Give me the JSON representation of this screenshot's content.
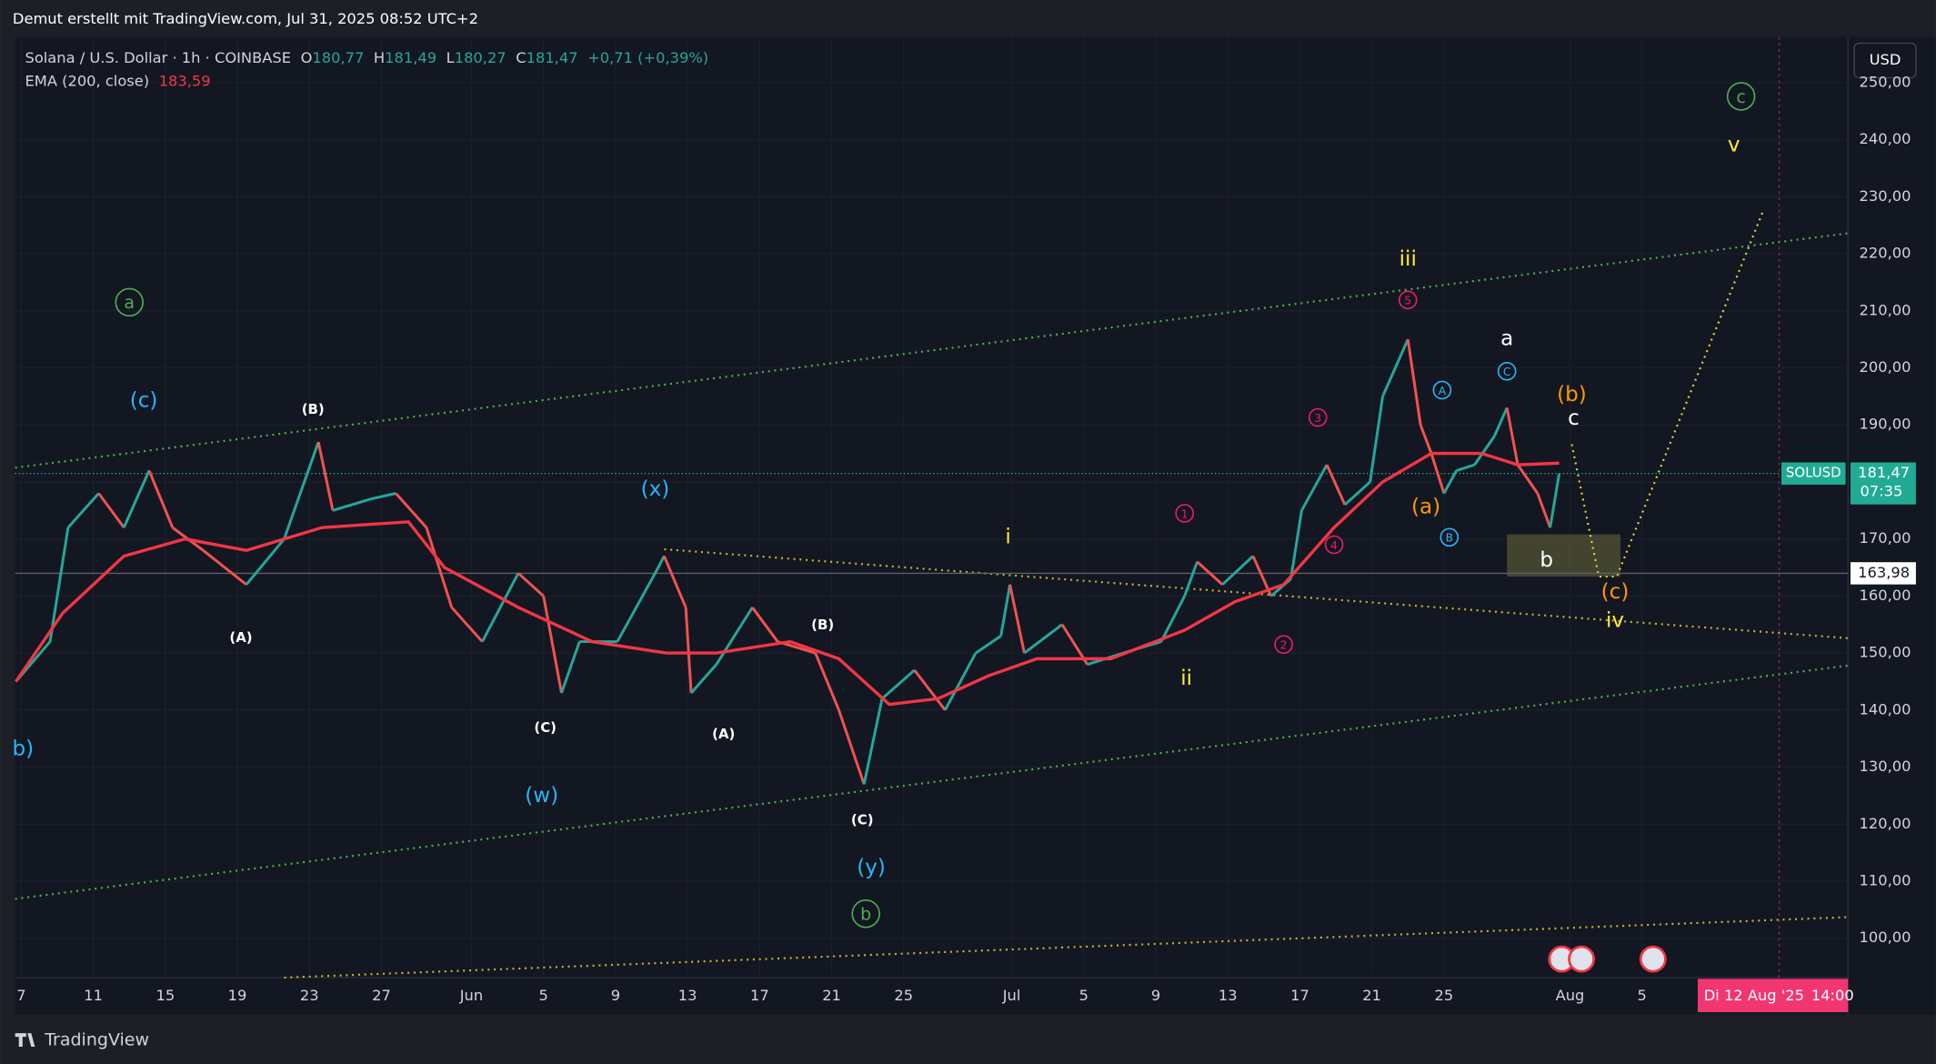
{
  "header": {
    "caption": "Demut erstellt mit TradingView.com, Jul 31, 2025 08:52 UTC+2",
    "logo": "TradingView"
  },
  "chart_data": {
    "type": "line",
    "legend": {
      "symbol": "Solana / U.S. Dollar · 1h · COINBASE",
      "open_label": "O",
      "open": "180,77",
      "high_label": "H",
      "high": "181,49",
      "low_label": "L",
      "low": "180,27",
      "close_label": "C",
      "close": "181,47",
      "change": "+0,71 (+0,39%)",
      "ema_label": "EMA (200, close)",
      "ema_value": "183,59"
    },
    "currency": "USD",
    "x": [
      -0.3,
      1.6,
      2.6,
      4.3,
      5.7,
      7.1,
      8.4,
      10.1,
      12.5,
      14.6,
      16.5,
      17.3,
      19.4,
      20.8,
      22.5,
      23.9,
      25.6,
      27.6,
      29.0,
      30.0,
      31.0,
      33.1,
      35.2,
      35.7,
      36.9,
      37.2,
      38.6,
      40.0,
      40.6,
      42.0,
      44.1,
      45.4,
      46.8,
      47.8,
      49.6,
      51.3,
      53.0,
      54.4,
      54.9,
      55.7,
      57.8,
      59.2,
      61.2,
      63.3,
      64.6,
      65.3,
      66.7,
      68.4,
      69.4,
      70.5,
      71.1,
      72.5,
      73.5,
      74.9,
      75.6,
      76.3,
      77.0,
      77.7,
      78.3,
      79.0,
      79.7,
      80.7,
      81.8,
      82.5,
      83.1,
      84.2,
      84.9,
      85.4
    ],
    "series": [
      {
        "name": "SOLUSD",
        "up_color": "#26a69a",
        "down_color": "#ef5350",
        "values": [
          145,
          152,
          172,
          178,
          172,
          182,
          172,
          168,
          162,
          170,
          187,
          175,
          177,
          178,
          172,
          158,
          152,
          164,
          160,
          143,
          152,
          152,
          164,
          167,
          158,
          143,
          148,
          155,
          158,
          152,
          150,
          140,
          127,
          142,
          147,
          140,
          150,
          153,
          162,
          150,
          155,
          148,
          150,
          152,
          160,
          166,
          162,
          167,
          160,
          163,
          175,
          183,
          176,
          180,
          195,
          200,
          205,
          190,
          185,
          178,
          182,
          183,
          188,
          193,
          183,
          178,
          172,
          181.47
        ]
      },
      {
        "name": "EMA",
        "color": "#f23645",
        "x": [
          -0.3,
          2.3,
          5.7,
          9.1,
          12.5,
          16.7,
          21.5,
          23.5,
          27.6,
          31.7,
          35.8,
          38.6,
          42.7,
          45.4,
          48.2,
          50.9,
          53.7,
          56.4,
          60.5,
          64.6,
          67.4,
          70.1,
          72.9,
          75.6,
          78.3,
          81.1,
          83.1,
          85.4
        ],
        "values": [
          145,
          157,
          167,
          170,
          168,
          172,
          173,
          165,
          158,
          152,
          150,
          150,
          152,
          149,
          141,
          142,
          146,
          149,
          149,
          154,
          159,
          162,
          172,
          180,
          185,
          185,
          183,
          183.3
        ]
      }
    ],
    "xlim": [
      -0.34,
      101.44
    ],
    "ylim": [
      93.1,
      258
    ],
    "xticks": [
      {
        "value": 0,
        "label": "7"
      },
      {
        "value": 4,
        "label": "11"
      },
      {
        "value": 8,
        "label": "15"
      },
      {
        "value": 12,
        "label": "19"
      },
      {
        "value": 16,
        "label": "23"
      },
      {
        "value": 20,
        "label": "27"
      },
      {
        "value": 25,
        "label": "Jun"
      },
      {
        "value": 29,
        "label": "5"
      },
      {
        "value": 33,
        "label": "9"
      },
      {
        "value": 37,
        "label": "13"
      },
      {
        "value": 41,
        "label": "17"
      },
      {
        "value": 45,
        "label": "21"
      },
      {
        "value": 49,
        "label": "25"
      },
      {
        "value": 55,
        "label": "Jul"
      },
      {
        "value": 59,
        "label": "5"
      },
      {
        "value": 63,
        "label": "9"
      },
      {
        "value": 67,
        "label": "13"
      },
      {
        "value": 71,
        "label": "17"
      },
      {
        "value": 75,
        "label": "21"
      },
      {
        "value": 79,
        "label": "25"
      },
      {
        "value": 86,
        "label": "Aug"
      },
      {
        "value": 90,
        "label": "5"
      }
    ],
    "yticks": [
      {
        "value": 100,
        "label": "100,00"
      },
      {
        "value": 110,
        "label": "110,00"
      },
      {
        "value": 120,
        "label": "120,00"
      },
      {
        "value": 130,
        "label": "130,00"
      },
      {
        "value": 140,
        "label": "140,00"
      },
      {
        "value": 150,
        "label": "150,00"
      },
      {
        "value": 160,
        "label": "160,00"
      },
      {
        "value": 170,
        "label": "170,00"
      },
      {
        "value": 180,
        "label": "180,00"
      },
      {
        "value": 190,
        "label": "190,00"
      },
      {
        "value": 200,
        "label": "200,00"
      },
      {
        "value": 210,
        "label": "210,00"
      },
      {
        "value": 220,
        "label": "220,00"
      },
      {
        "value": 230,
        "label": "230,00"
      },
      {
        "value": 240,
        "label": "240,00"
      },
      {
        "value": 250,
        "label": "250,00"
      }
    ],
    "last_price": {
      "name": "SOLUSD",
      "value": 181.47,
      "label": "181,47",
      "countdown": "07:35",
      "color": "#22ab94"
    },
    "level": {
      "value": 163.98,
      "label": "163,98"
    },
    "cursor_date": {
      "x": 97,
      "label": "Di 12 Aug '25",
      "time": "14:00",
      "color": "#f23672"
    },
    "trendlines": [
      {
        "color": "#4caf50",
        "x": [
          -0.34,
          101.44
        ],
        "y": [
          182.5,
          223.6
        ]
      },
      {
        "color": "#4caf50",
        "x": [
          -0.34,
          101.44
        ],
        "y": [
          106.9,
          147.8
        ]
      },
      {
        "color": "#c9b03a",
        "x": [
          14.6,
          101.44
        ],
        "y": [
          93.1,
          103.7
        ]
      },
      {
        "color": "#c9b03a",
        "x": [
          35.7,
          101.44
        ],
        "y": [
          168.2,
          152.6
        ]
      },
      {
        "color": "#e6d23a",
        "x": [
          86.1,
          87.6,
          88.6,
          96.7
        ],
        "y": [
          186.6,
          163.4,
          163.4,
          227.3
        ]
      }
    ],
    "zone": {
      "color": "#6b6a3a",
      "x": [
        82.5,
        88.8
      ],
      "y": [
        163.4,
        170.8
      ]
    },
    "annotations": [
      {
        "text": "a",
        "x": 6.0,
        "y": 211.5,
        "color": "#4caf50",
        "circled": true
      },
      {
        "text": "(c)",
        "x": 6.8,
        "y": 194.2,
        "color": "#29b6f6",
        "circled": false
      },
      {
        "text": "(B)",
        "x": 16.2,
        "y": 192.6,
        "color": "#ffffff",
        "circled": false
      },
      {
        "text": "(A)",
        "x": 12.2,
        "y": 152.6,
        "color": "#ffffff",
        "circled": false
      },
      {
        "text": "b)",
        "x": 0.1,
        "y": 133.1,
        "color": "#29b6f6",
        "circled": false
      },
      {
        "text": "(C)",
        "x": 29.1,
        "y": 136.8,
        "color": "#ffffff",
        "circled": false
      },
      {
        "text": "(w)",
        "x": 28.9,
        "y": 124.9,
        "color": "#29b6f6",
        "circled": false
      },
      {
        "text": "(x)",
        "x": 35.2,
        "y": 178.6,
        "color": "#29b6f6",
        "circled": false
      },
      {
        "text": "(A)",
        "x": 39.0,
        "y": 135.7,
        "color": "#ffffff",
        "circled": false
      },
      {
        "text": "(B)",
        "x": 44.5,
        "y": 154.8,
        "color": "#ffffff",
        "circled": false
      },
      {
        "text": "(C)",
        "x": 46.7,
        "y": 120.6,
        "color": "#ffffff",
        "circled": false
      },
      {
        "text": "(y)",
        "x": 47.2,
        "y": 112.3,
        "color": "#29b6f6",
        "circled": false
      },
      {
        "text": "b",
        "x": 46.9,
        "y": 104.3,
        "color": "#4caf50",
        "circled": true
      },
      {
        "text": "i",
        "x": 54.8,
        "y": 170.3,
        "color": "#ffeb3b",
        "circled": false
      },
      {
        "text": "ii",
        "x": 64.7,
        "y": 145.5,
        "color": "#ffeb3b",
        "circled": false
      },
      {
        "text": "iii",
        "x": 77.0,
        "y": 219.0,
        "color": "#ffeb3b",
        "circled": false
      },
      {
        "text": "iv",
        "x": 88.5,
        "y": 155.6,
        "color": "#ffeb3b",
        "circled": false
      },
      {
        "text": "v",
        "x": 95.1,
        "y": 239.0,
        "color": "#ffeb3b",
        "circled": false
      },
      {
        "text": "c",
        "x": 95.5,
        "y": 247.6,
        "color": "#4caf50",
        "circled": true
      },
      {
        "text": "1",
        "x": 64.6,
        "y": 174.5,
        "color": "#e91e63",
        "circled": true
      },
      {
        "text": "2",
        "x": 70.1,
        "y": 151.5,
        "color": "#e91e63",
        "circled": true
      },
      {
        "text": "3",
        "x": 72.0,
        "y": 191.3,
        "color": "#e91e63",
        "circled": true
      },
      {
        "text": "4",
        "x": 72.9,
        "y": 169.0,
        "color": "#e91e63",
        "circled": true
      },
      {
        "text": "5",
        "x": 77.0,
        "y": 211.9,
        "color": "#e91e63",
        "circled": true
      },
      {
        "text": "(a)",
        "x": 78.0,
        "y": 175.5,
        "color": "#ff9800",
        "circled": false
      },
      {
        "text": "A",
        "x": 78.9,
        "y": 196.1,
        "color": "#29b6f6",
        "circled": true
      },
      {
        "text": "B",
        "x": 79.3,
        "y": 170.3,
        "color": "#29b6f6",
        "circled": true
      },
      {
        "text": "C",
        "x": 82.5,
        "y": 199.4,
        "color": "#29b6f6",
        "circled": true
      },
      {
        "text": "a",
        "x": 82.5,
        "y": 205.0,
        "color": "#ffffff",
        "circled": false
      },
      {
        "text": "(b)",
        "x": 86.1,
        "y": 195.2,
        "color": "#ff9800",
        "circled": false
      },
      {
        "text": "c",
        "x": 86.2,
        "y": 191.1,
        "color": "#ffffff",
        "circled": false
      },
      {
        "text": "b",
        "x": 84.7,
        "y": 166.2,
        "color": "#ffffff",
        "circled": false
      },
      {
        "text": "(c)",
        "x": 88.5,
        "y": 160.6,
        "color": "#ff9800",
        "circled": false
      }
    ]
  }
}
